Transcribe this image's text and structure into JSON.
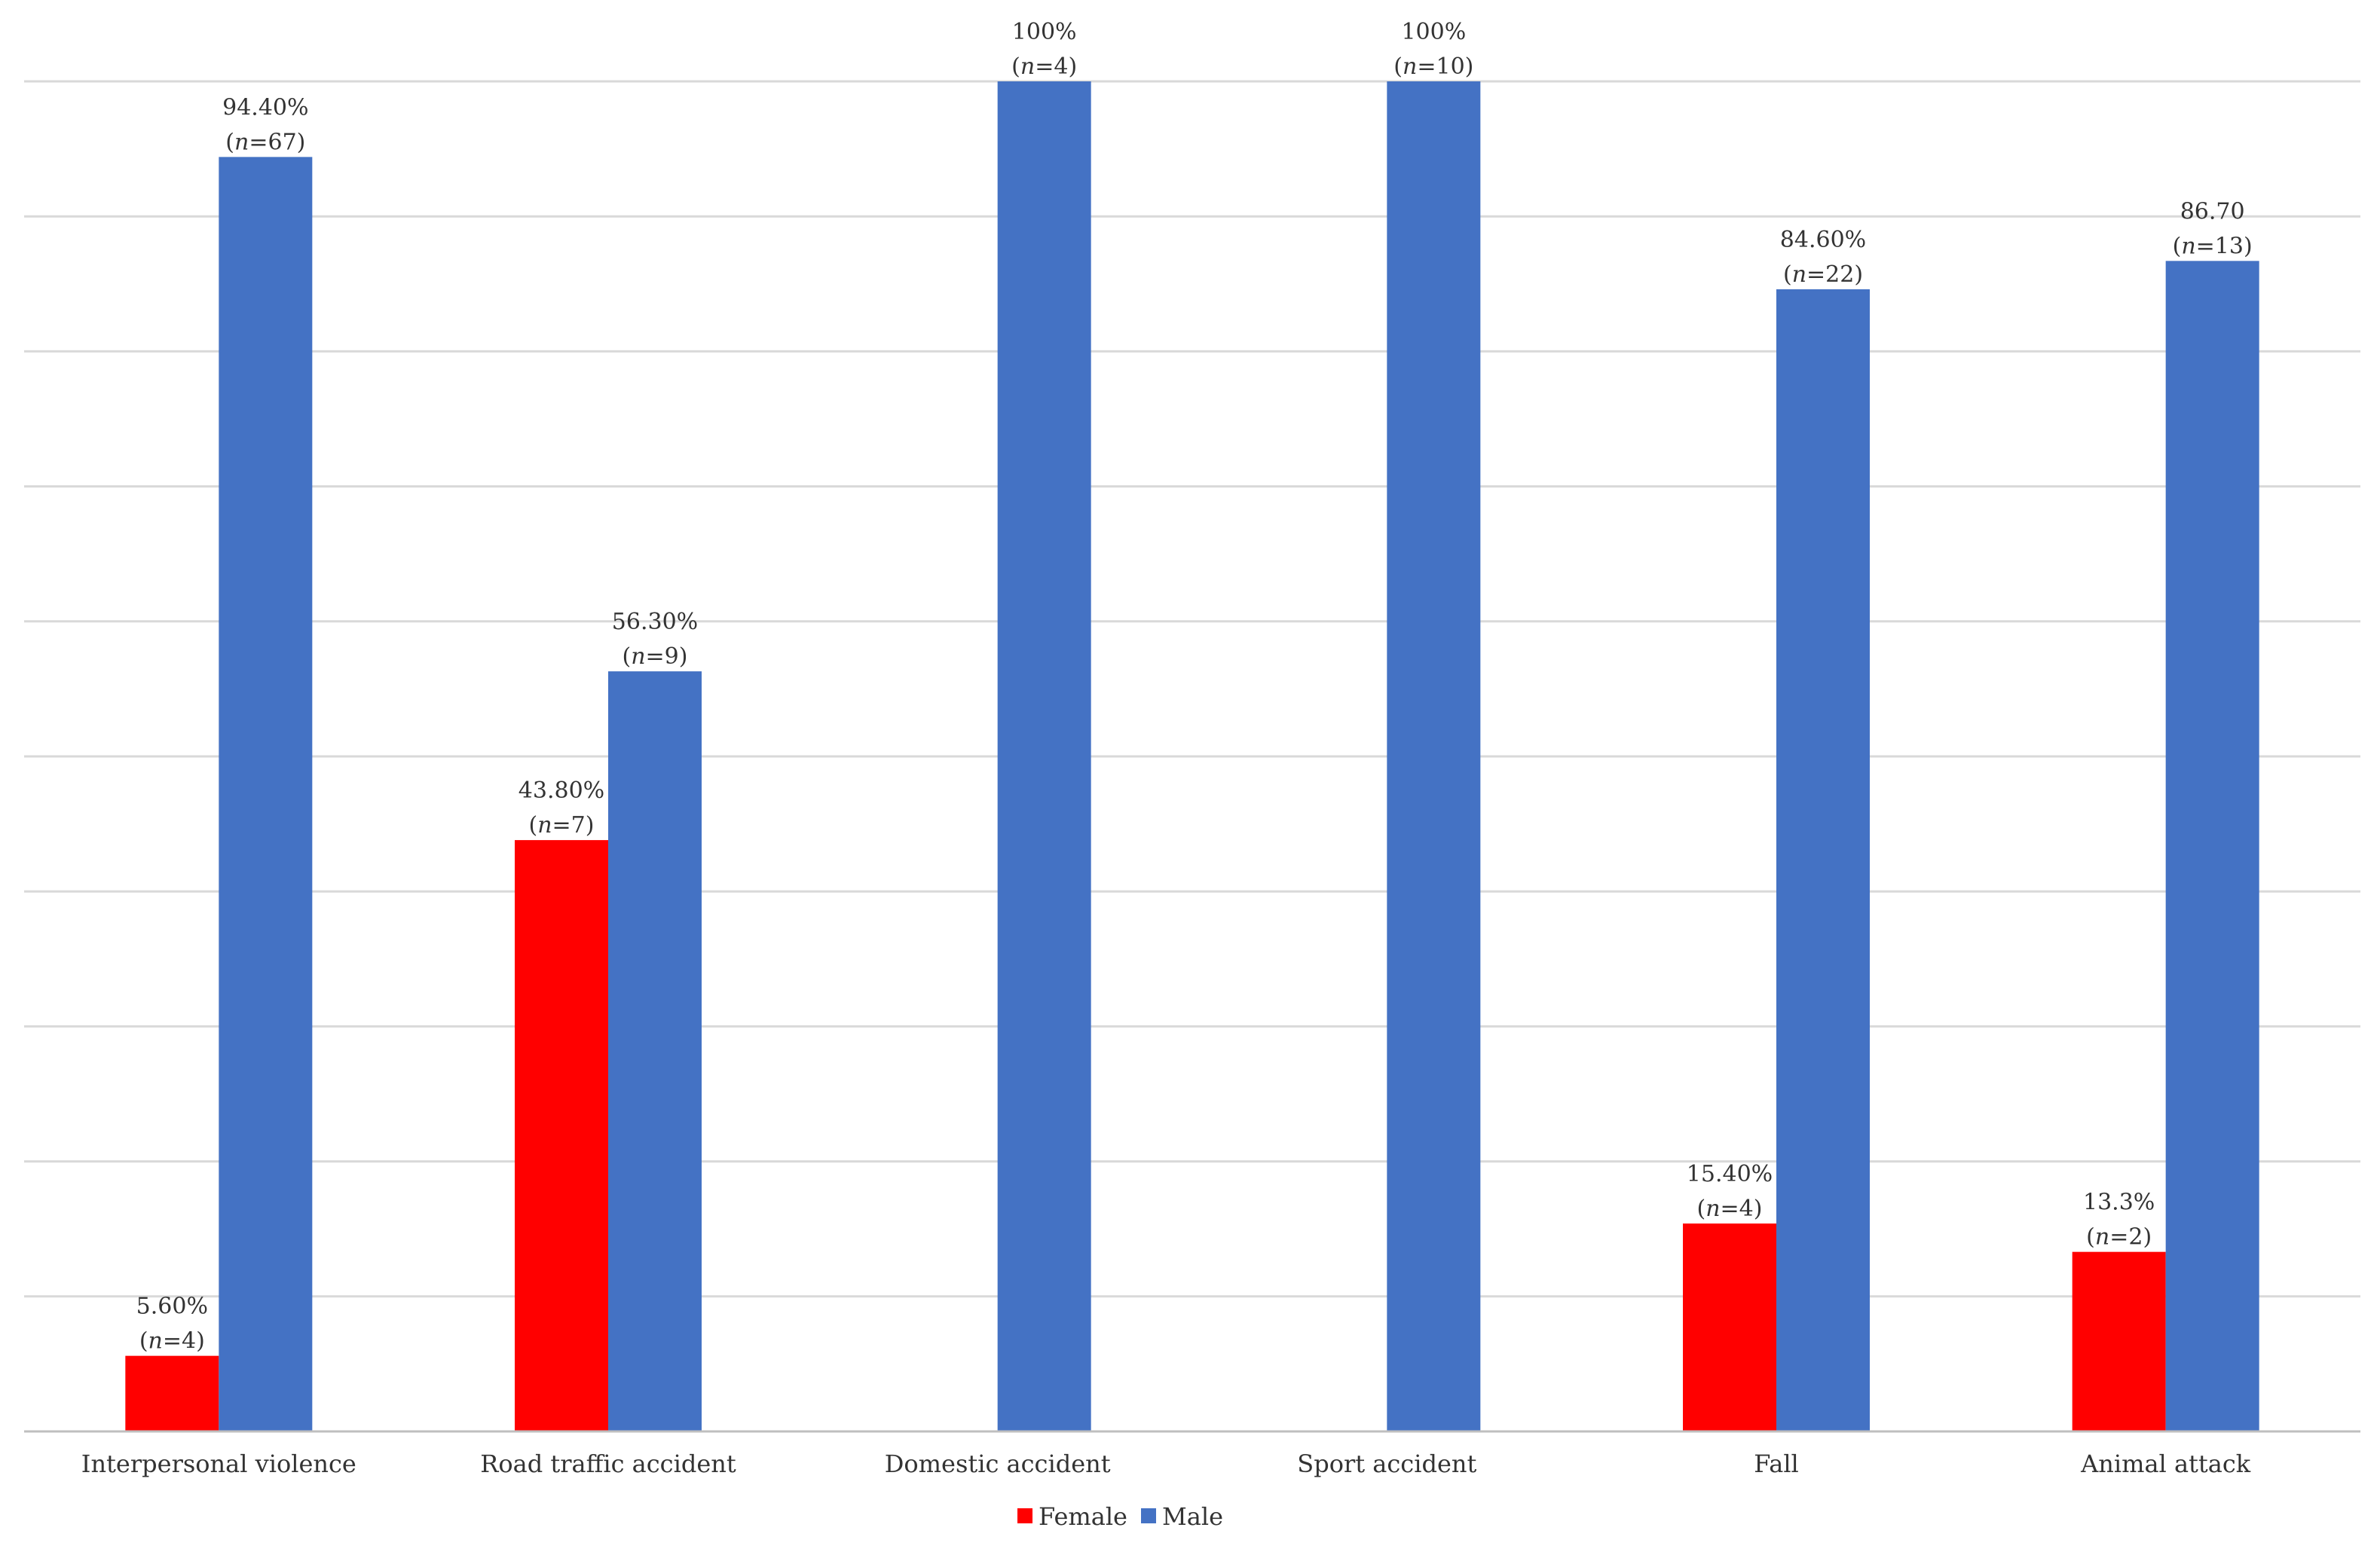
{
  "chart_data": {
    "type": "bar",
    "title": "",
    "xlabel": "",
    "ylabel": "",
    "ylim": [
      0,
      100
    ],
    "grid": true,
    "legend_position": "bottom-center",
    "categories": [
      "Interpersonal violence",
      "Road traffic accident",
      "Domestic accident",
      "Sport accident",
      "Fall",
      "Animal attack"
    ],
    "series": [
      {
        "name": "Female",
        "color": "#ff0000",
        "values": [
          5.6,
          43.8,
          null,
          null,
          15.4,
          13.3
        ],
        "labels": [
          "5.60%",
          "43.80%",
          null,
          null,
          "15.40%",
          "13.3%"
        ],
        "n": [
          "4",
          "7",
          null,
          null,
          "4",
          "2"
        ]
      },
      {
        "name": "Male",
        "color": "#4472c4",
        "values": [
          94.4,
          56.3,
          100,
          100,
          84.6,
          86.7
        ],
        "labels": [
          "94.40%",
          "56.30%",
          "100%",
          "100%",
          "84.60%",
          "86.70"
        ],
        "n": [
          "67",
          "9",
          "4",
          "10",
          "22",
          "13"
        ]
      }
    ],
    "grid_color": "#d9d9d9",
    "axis_color": "#bfbfbf"
  }
}
